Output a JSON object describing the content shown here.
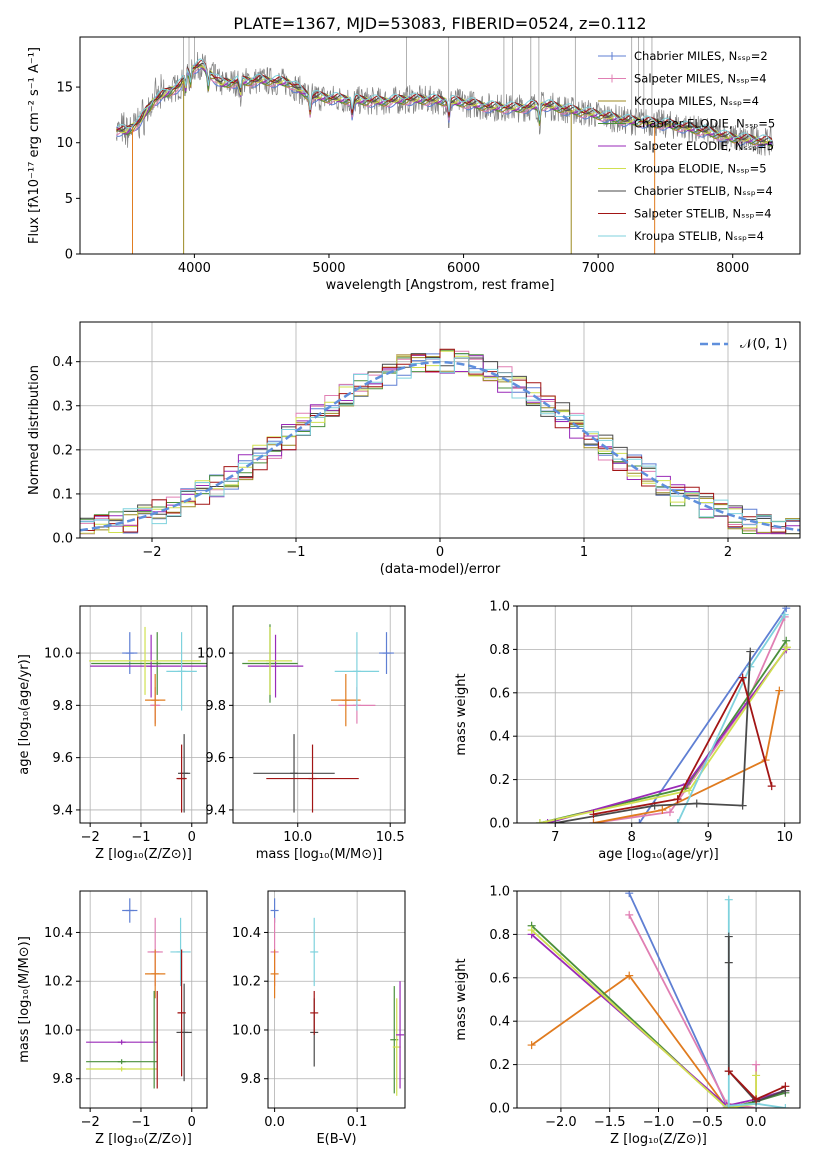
{
  "figure_title": "PLATE=1367, MJD=53083, FIBERID=0524, z=0.112",
  "colors": {
    "chabrier_miles": "#5f7fd3",
    "salpeter_miles": "#e07fb3",
    "kroupa_miles": "#9c8a22",
    "chabrier_elodie": "#4a8f3c",
    "salpeter_elodie": "#9a2ab8",
    "kroupa_elodie": "#d0e050",
    "chabrier_stelib": "#4a4a4a",
    "salpeter_stelib": "#a21515",
    "kroupa_stelib": "#7fd2dd",
    "orange": "#e07b1f",
    "normal": "#5f8fdc",
    "observed": "#808080"
  },
  "chart_data": [
    {
      "id": "spectrum",
      "type": "line",
      "xlabel": "wavelength [Angstrom, rest frame]",
      "ylabel": "Flux [fλ10⁻¹⁷ erg cm⁻² s⁻¹ A⁻¹]",
      "xlim": [
        3150,
        8500
      ],
      "ylim": [
        0,
        19.5
      ],
      "xticks": [
        4000,
        5000,
        6000,
        7000,
        8000
      ],
      "yticks": [
        0,
        5,
        10,
        15
      ],
      "grid": false,
      "legend_position": "top-right",
      "legend": [
        "Chabrier MILES, Nₛₛₚ=2",
        "Salpeter MILES, Nₛₛₚ=4",
        "Kroupa MILES, Nₛₛₚ=4",
        "Chabrier ELODIE, Nₛₛₚ=5",
        "Salpeter ELODIE, Nₛₛₚ=5",
        "Kroupa ELODIE, Nₛₛₚ=5",
        "Chabrier STELIB, Nₛₛₚ=4",
        "Salpeter STELIB, Nₛₛₚ=4",
        "Kroupa STELIB, Nₛₛₚ=4"
      ],
      "continuum": {
        "x": [
          3400,
          3500,
          3600,
          3700,
          3800,
          3900,
          3950,
          4050,
          4200,
          4350,
          4500,
          4700,
          4850,
          5000,
          5200,
          5400,
          5600,
          5800,
          6000,
          6200,
          6400,
          6600,
          6800,
          7000,
          7200,
          7400,
          7600,
          7800,
          8000,
          8200,
          8300
        ],
        "y": [
          11.2,
          11.0,
          12.0,
          13.8,
          14.5,
          15.2,
          16.5,
          17.0,
          15.3,
          15.5,
          15.6,
          15.4,
          14.2,
          14.0,
          13.8,
          13.7,
          13.9,
          13.8,
          13.6,
          13.2,
          13.1,
          13.4,
          12.9,
          12.5,
          12.0,
          11.8,
          11.5,
          11.0,
          10.4,
          10.2,
          10.0
        ]
      }
    },
    {
      "id": "residuals",
      "type": "step",
      "xlabel": "(data-model)/error",
      "ylabel": "Normed distribution",
      "xlim": [
        -2.5,
        2.5
      ],
      "ylim": [
        0,
        0.49
      ],
      "xticks": [
        -2,
        -1,
        0,
        1,
        2
      ],
      "yticks": [
        0.0,
        0.1,
        0.2,
        0.3,
        0.4
      ],
      "grid": true,
      "legend_position": "top-right",
      "legend": [
        "𝒩(0, 1)"
      ]
    },
    {
      "id": "age-vs-z",
      "type": "scatter",
      "xlabel": "Z [log₁₀(Z/Z⊙)]",
      "ylabel": "age  [log₁₀(age/yr)]",
      "xlim": [
        -2.2,
        0.3
      ],
      "ylim": [
        9.35,
        10.18
      ],
      "xticks": [
        -2,
        -1,
        0
      ],
      "yticks": [
        9.4,
        9.6,
        9.8,
        10.0
      ],
      "grid": true,
      "points": [
        {
          "series": "chabrier_miles",
          "x": -1.22,
          "y": 10.0,
          "xerr": 0.15,
          "yerr": 0.08
        },
        {
          "series": "salpeter_miles",
          "x": -0.72,
          "y": 9.8,
          "xerr": 0.1,
          "yerr": 0.07
        },
        {
          "series": "orange",
          "x": -0.72,
          "y": 9.82,
          "xerr": 0.2,
          "yerr": 0.1
        },
        {
          "series": "chabrier_elodie",
          "x": -0.68,
          "y": 9.96,
          "xerr": 1.3,
          "yerr": 0.12
        },
        {
          "series": "salpeter_elodie",
          "x": -0.8,
          "y": 9.95,
          "xerr": 1.2,
          "yerr": 0.12
        },
        {
          "series": "kroupa_elodie",
          "x": -0.92,
          "y": 9.97,
          "xerr": 1.1,
          "yerr": 0.13
        },
        {
          "series": "kroupa_stelib",
          "x": -0.2,
          "y": 9.93,
          "xerr": 0.3,
          "yerr": 0.15
        },
        {
          "series": "chabrier_stelib",
          "x": -0.15,
          "y": 9.54,
          "xerr": 0.12,
          "yerr": 0.15
        },
        {
          "series": "salpeter_stelib",
          "x": -0.2,
          "y": 9.52,
          "xerr": 0.1,
          "yerr": 0.13
        }
      ]
    },
    {
      "id": "age-vs-mass",
      "type": "scatter",
      "xlabel": "mass [log₁₀(M/M⊙)]",
      "ylabel": "",
      "xlim": [
        9.65,
        10.58
      ],
      "ylim": [
        9.35,
        10.18
      ],
      "xticks": [
        10.0,
        10.5
      ],
      "yticks": [
        9.4,
        9.6,
        9.8,
        10.0
      ],
      "grid": true,
      "points": [
        {
          "series": "chabrier_miles",
          "x": 10.48,
          "y": 10.0,
          "xerr": 0.04,
          "yerr": 0.08
        },
        {
          "series": "salpeter_miles",
          "x": 10.32,
          "y": 9.8,
          "xerr": 0.1,
          "yerr": 0.07
        },
        {
          "series": "orange",
          "x": 10.26,
          "y": 9.82,
          "xerr": 0.08,
          "yerr": 0.1
        },
        {
          "series": "chabrier_elodie",
          "x": 9.85,
          "y": 9.96,
          "xerr": 0.15,
          "yerr": 0.15
        },
        {
          "series": "salpeter_elodie",
          "x": 9.88,
          "y": 9.95,
          "xerr": 0.15,
          "yerr": 0.12
        },
        {
          "series": "kroupa_elodie",
          "x": 9.85,
          "y": 9.97,
          "xerr": 0.12,
          "yerr": 0.13
        },
        {
          "series": "kroupa_stelib",
          "x": 10.32,
          "y": 9.93,
          "xerr": 0.12,
          "yerr": 0.15
        },
        {
          "series": "chabrier_stelib",
          "x": 9.98,
          "y": 9.54,
          "xerr": 0.22,
          "yerr": 0.15
        },
        {
          "series": "salpeter_stelib",
          "x": 10.08,
          "y": 9.52,
          "xerr": 0.25,
          "yerr": 0.13
        }
      ]
    },
    {
      "id": "massweight-vs-age",
      "type": "line",
      "xlabel": "age  [log₁₀(age/yr)]",
      "ylabel": "mass weight",
      "xlim": [
        6.5,
        10.2
      ],
      "ylim": [
        0,
        1
      ],
      "xticks": [
        7,
        8,
        9,
        10
      ],
      "yticks": [
        0.0,
        0.2,
        0.4,
        0.6,
        0.8,
        1.0
      ],
      "grid": true,
      "series": [
        {
          "key": "chabrier_miles",
          "x": [
            8.1,
            10.02
          ],
          "y": [
            0.0,
            0.99
          ]
        },
        {
          "key": "salpeter_miles",
          "x": [
            7.5,
            8.5,
            9.5,
            10.0
          ],
          "y": [
            0.0,
            0.05,
            0.55,
            0.95
          ]
        },
        {
          "key": "orange",
          "x": [
            7.5,
            8.4,
            9.75,
            9.93
          ],
          "y": [
            0.0,
            0.06,
            0.29,
            0.61
          ]
        },
        {
          "key": "chabrier_elodie",
          "x": [
            6.8,
            8.7,
            10.02
          ],
          "y": [
            0.0,
            0.16,
            0.84
          ]
        },
        {
          "key": "salpeter_elodie",
          "x": [
            6.9,
            8.72,
            10.02
          ],
          "y": [
            0.0,
            0.18,
            0.8
          ]
        },
        {
          "key": "kroupa_elodie",
          "x": [
            6.8,
            8.75,
            10.03
          ],
          "y": [
            0.0,
            0.15,
            0.81
          ]
        },
        {
          "key": "kroupa_stelib",
          "x": [
            8.6,
            9.55,
            10.0
          ],
          "y": [
            0.0,
            0.72,
            0.96
          ]
        },
        {
          "key": "chabrier_stelib",
          "x": [
            7.0,
            8.3,
            8.85,
            9.45,
            9.55
          ],
          "y": [
            0.0,
            0.08,
            0.09,
            0.08,
            0.79
          ]
        },
        {
          "key": "salpeter_stelib",
          "x": [
            7.5,
            8.6,
            9.45,
            9.83
          ],
          "y": [
            0.04,
            0.11,
            0.67,
            0.17
          ]
        }
      ]
    },
    {
      "id": "mass-vs-z",
      "type": "scatter",
      "xlabel": "Z [log₁₀(Z/Z⊙)]",
      "ylabel": "mass [log₁₀(M/M⊙)]",
      "xlim": [
        -2.2,
        0.3
      ],
      "ylim": [
        9.68,
        10.57
      ],
      "xticks": [
        -2,
        -1,
        0
      ],
      "yticks": [
        9.8,
        10.0,
        10.2,
        10.4
      ],
      "grid": true,
      "points": [
        {
          "series": "chabrier_miles",
          "x": -1.22,
          "y": 10.49,
          "xerr": 0.15,
          "yerr": 0.05
        },
        {
          "series": "salpeter_miles",
          "x": -0.72,
          "y": 10.32,
          "xerr": 0.15,
          "yerr": 0.14
        },
        {
          "series": "orange",
          "x": -0.72,
          "y": 10.23,
          "xerr": 0.2,
          "yerr": 0.1
        },
        {
          "series": "chabrier_elodie",
          "x": -1.38,
          "y": 9.87,
          "xerr": 0.7,
          "yerr": 0.01
        },
        {
          "series": "salpeter_elodie",
          "x": -1.38,
          "y": 9.95,
          "xerr": 0.7,
          "yerr": 0.01
        },
        {
          "series": "kroupa_elodie",
          "x": -1.38,
          "y": 9.84,
          "xerr": 0.7,
          "yerr": 0.01
        },
        {
          "series": "kroupa_stelib",
          "x": -0.22,
          "y": 10.32,
          "xerr": 0.2,
          "yerr": 0.14
        },
        {
          "series": "chabrier_stelib",
          "x": -0.15,
          "y": 9.99,
          "xerr": 0.15,
          "yerr": 0.2
        },
        {
          "series": "salpeter_stelib",
          "x": -0.2,
          "y": 10.07,
          "xerr": 0.08,
          "yerr": 0.26
        }
      ],
      "vbars": [
        {
          "series": "chabrier_elodie",
          "x": -0.74,
          "y": 9.96,
          "yerr": 0.2
        },
        {
          "series": "salpeter_stelib",
          "x": -0.68,
          "y": 9.96,
          "yerr": 0.2
        }
      ]
    },
    {
      "id": "mass-vs-ebv",
      "type": "scatter",
      "xlabel": "E(B-V)",
      "ylabel": "",
      "xlim": [
        -0.008,
        0.158
      ],
      "ylim": [
        9.68,
        10.57
      ],
      "xticks": [
        0.0,
        0.1
      ],
      "yticks": [
        9.8,
        10.0,
        10.2,
        10.4
      ],
      "grid": true,
      "points": [
        {
          "series": "chabrier_miles",
          "x": 0.0,
          "y": 10.49,
          "yerr": 0.05
        },
        {
          "series": "salpeter_miles",
          "x": 0.0,
          "y": 10.32,
          "yerr": 0.14
        },
        {
          "series": "orange",
          "x": 0.0,
          "y": 10.23,
          "yerr": 0.1
        },
        {
          "series": "kroupa_stelib",
          "x": 0.048,
          "y": 10.32,
          "yerr": 0.14
        },
        {
          "series": "chabrier_stelib",
          "x": 0.048,
          "y": 9.99,
          "yerr": 0.14
        },
        {
          "series": "salpeter_stelib",
          "x": 0.048,
          "y": 10.07,
          "yerr": 0.09
        },
        {
          "series": "chabrier_elodie",
          "x": 0.145,
          "y": 9.96,
          "yerr": 0.22
        },
        {
          "series": "kroupa_elodie",
          "x": 0.148,
          "y": 9.93,
          "yerr": 0.2
        },
        {
          "series": "salpeter_elodie",
          "x": 0.152,
          "y": 9.98,
          "yerr": 0.22
        }
      ]
    },
    {
      "id": "massweight-vs-z",
      "type": "line",
      "xlabel": "Z [log₁₀(Z/Z⊙)]",
      "ylabel": "mass weight",
      "xlim": [
        -2.45,
        0.45
      ],
      "ylim": [
        0,
        1
      ],
      "xticks": [
        -2.0,
        -1.5,
        -1.0,
        -0.5,
        0.0
      ],
      "yticks": [
        0.0,
        0.2,
        0.4,
        0.6,
        0.8,
        1.0
      ],
      "grid": true,
      "series": [
        {
          "key": "chabrier_miles",
          "x": [
            -1.3,
            -0.3,
            0.0
          ],
          "y": [
            0.99,
            0.01,
            0.0
          ]
        },
        {
          "key": "salpeter_miles",
          "x": [
            -1.3,
            -0.3,
            0.0,
            0.0
          ],
          "y": [
            0.89,
            0.02,
            0.0,
            0.2
          ]
        },
        {
          "key": "orange",
          "x": [
            -2.3,
            -1.3,
            -0.3,
            0.0
          ],
          "y": [
            0.29,
            0.61,
            0.0,
            0.03
          ]
        },
        {
          "key": "chabrier_elodie",
          "x": [
            -2.3,
            -0.3,
            0.0,
            0.3
          ],
          "y": [
            0.84,
            0.0,
            0.03,
            0.07
          ]
        },
        {
          "key": "salpeter_elodie",
          "x": [
            -2.3,
            -0.3,
            0.0,
            0.3
          ],
          "y": [
            0.8,
            0.01,
            0.04,
            0.08
          ]
        },
        {
          "key": "kroupa_elodie",
          "x": [
            -2.3,
            -0.3,
            0.0,
            0.0
          ],
          "y": [
            0.82,
            0.0,
            0.02,
            0.15
          ]
        },
        {
          "key": "kroupa_stelib",
          "x": [
            -0.28,
            -0.28,
            0.0,
            0.3
          ],
          "y": [
            0.96,
            0.01,
            0.02,
            0.0
          ]
        },
        {
          "key": "chabrier_stelib",
          "x": [
            -0.28,
            -0.28,
            -0.28,
            0.0,
            0.3
          ],
          "y": [
            0.79,
            0.67,
            0.17,
            0.03,
            0.08
          ]
        },
        {
          "key": "salpeter_stelib",
          "x": [
            -0.28,
            0.0,
            0.3
          ],
          "y": [
            0.17,
            0.04,
            0.1
          ]
        }
      ]
    }
  ]
}
